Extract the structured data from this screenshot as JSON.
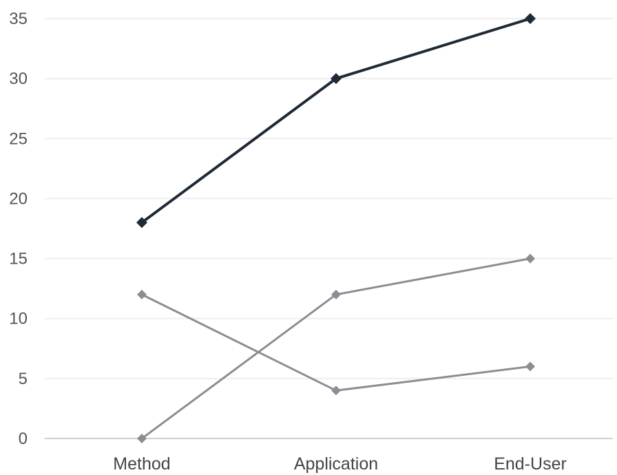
{
  "chart_data": {
    "type": "line",
    "categories": [
      "Method",
      "Application",
      "End-User"
    ],
    "series": [
      {
        "values": [
          18,
          30,
          35
        ],
        "color": "#1f2a36",
        "emphasis": true
      },
      {
        "values": [
          0,
          12,
          15
        ],
        "color": "#8a8e94",
        "emphasis": false
      },
      {
        "values": [
          12,
          4,
          6
        ],
        "color": "#8a8e94",
        "emphasis": false
      }
    ],
    "yticks": [
      0,
      5,
      10,
      15,
      20,
      25,
      30,
      35
    ],
    "ylim": [
      0,
      35
    ],
    "grid": true,
    "legend": "none",
    "title": "",
    "xlabel": "",
    "ylabel": ""
  }
}
